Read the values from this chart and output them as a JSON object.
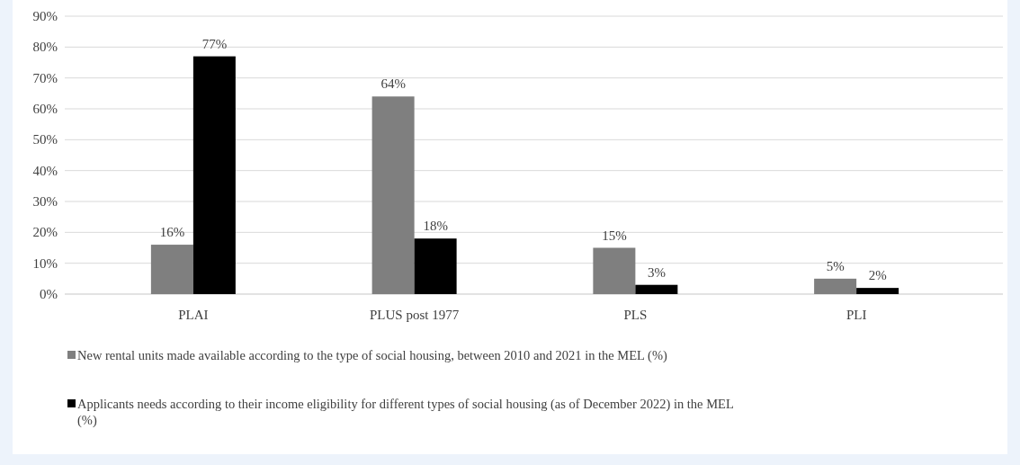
{
  "chart_data": {
    "type": "bar",
    "categories": [
      "PLAI",
      "PLUS post 1977",
      "PLS",
      "PLI"
    ],
    "series": [
      {
        "name": "New rental units made available according to the type of social housing, between 2010 and 2021 in the MEL (%)",
        "color": "#7f7f7f",
        "values": [
          16,
          64,
          15,
          5
        ],
        "value_labels": [
          "16%",
          "64%",
          "15%",
          "5%"
        ]
      },
      {
        "name": "Applicants needs according to their income eligibility for different types of social housing (as of December 2022) in the MEL (%)",
        "color": "#000000",
        "values": [
          77,
          18,
          3,
          2
        ],
        "value_labels": [
          "77%",
          "18%",
          "3%",
          "2%"
        ]
      }
    ],
    "ylim": [
      0,
      90
    ],
    "yticks": [
      {
        "value": 0,
        "label": "0%"
      },
      {
        "value": 10,
        "label": "10%"
      },
      {
        "value": 20,
        "label": "20%"
      },
      {
        "value": 30,
        "label": "30%"
      },
      {
        "value": 40,
        "label": "40%"
      },
      {
        "value": 50,
        "label": "50%"
      },
      {
        "value": 60,
        "label": "60%"
      },
      {
        "value": 70,
        "label": "70%"
      },
      {
        "value": 80,
        "label": "80%"
      },
      {
        "value": 90,
        "label": "90%"
      }
    ],
    "grid": "y",
    "legend": "bottom"
  }
}
